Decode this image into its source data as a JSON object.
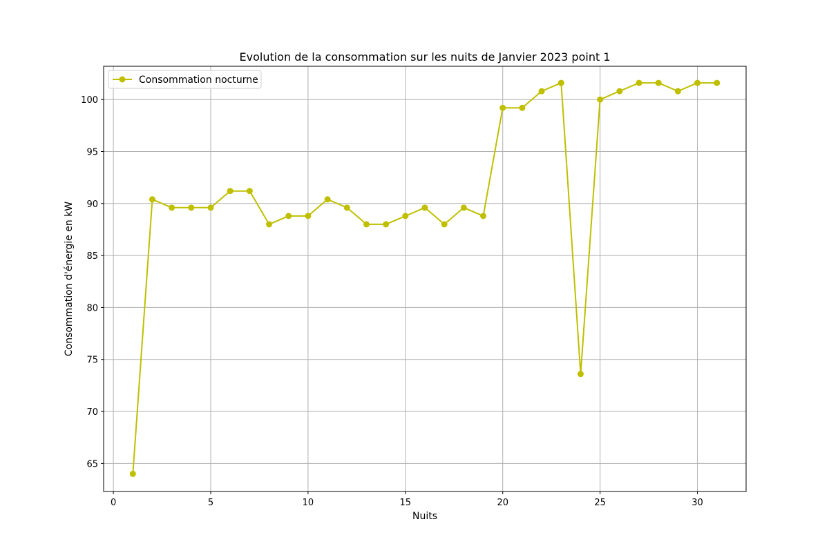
{
  "chart_data": {
    "type": "line",
    "title": "Evolution de la consommation sur les nuits de Janvier 2023 point 1",
    "xlabel": "Nuits",
    "ylabel": "Consommation d'énergie en kW",
    "xlim": [
      -0.5,
      32.5
    ],
    "ylim": [
      62.3,
      103.2
    ],
    "xticks": [
      0,
      5,
      10,
      15,
      20,
      25,
      30
    ],
    "yticks": [
      65,
      70,
      75,
      80,
      85,
      90,
      95,
      100
    ],
    "grid": true,
    "legend_position": "top-left",
    "colors": {
      "series": "#bfbf00",
      "grid": "#b0b0b0",
      "axes": "#000000"
    },
    "series": [
      {
        "name": "Consommation nocturne",
        "marker": "circle",
        "x": [
          1,
          2,
          3,
          4,
          5,
          6,
          7,
          8,
          9,
          10,
          11,
          12,
          13,
          14,
          15,
          16,
          17,
          18,
          19,
          20,
          21,
          22,
          23,
          24,
          25,
          26,
          27,
          28,
          29,
          30,
          31
        ],
        "y": [
          64.0,
          90.4,
          89.6,
          89.6,
          89.6,
          91.2,
          91.2,
          88.0,
          88.8,
          88.8,
          90.4,
          89.6,
          88.0,
          88.0,
          88.8,
          89.6,
          88.0,
          89.6,
          88.8,
          99.2,
          99.2,
          100.8,
          101.6,
          73.6,
          100.0,
          100.8,
          101.6,
          101.6,
          100.8,
          101.6,
          101.6
        ]
      }
    ]
  }
}
